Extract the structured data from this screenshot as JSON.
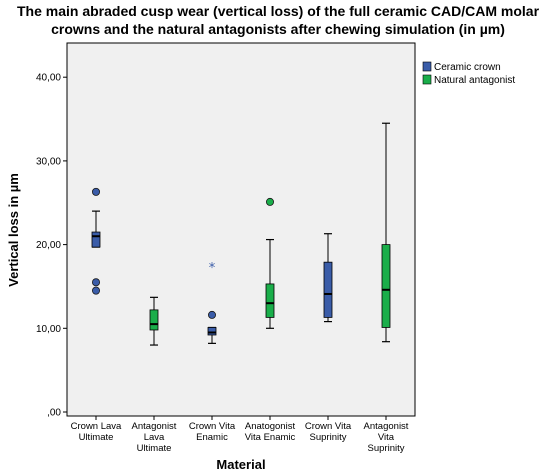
{
  "chart_data": {
    "type": "boxplot",
    "title": [
      "The main abraded cusp wear (vertical loss) of the full ceramic CAD/CAM molar",
      "crowns and the natural antagonists after chewing simulation (in µm)"
    ],
    "xlabel": "Material",
    "ylabel": "Vertical loss in µm",
    "ylim": [
      0,
      44
    ],
    "yticks": [
      0,
      10,
      20,
      30,
      40
    ],
    "ytick_labels": [
      ",00",
      "10,00",
      "20,00",
      "30,00",
      "40,00"
    ],
    "grid": false,
    "legend_position": "right",
    "series": [
      {
        "name": "Ceramic crown",
        "color": "#3a5ca8"
      },
      {
        "name": "Natural antagonist",
        "color": "#1aae4a"
      }
    ],
    "categories": [
      {
        "label": [
          "Crown Lava",
          "Ultimate"
        ],
        "series": "Ceramic crown",
        "whisker_low": 19.7,
        "q1": 19.7,
        "median": 21.0,
        "q3": 21.5,
        "whisker_high": 24.0,
        "outliers": [
          26.3,
          15.5,
          14.5
        ],
        "extremes": []
      },
      {
        "label": [
          "Antagonist",
          "Lava",
          "Ultimate"
        ],
        "series": "Natural antagonist",
        "whisker_low": 8.0,
        "q1": 9.8,
        "median": 10.5,
        "q3": 12.2,
        "whisker_high": 13.7,
        "outliers": [],
        "extremes": []
      },
      {
        "label": [
          "Crown Vita",
          "Enamic"
        ],
        "series": "Ceramic crown",
        "whisker_low": 8.2,
        "q1": 9.2,
        "median": 9.5,
        "q3": 10.1,
        "whisker_high": 10.1,
        "outliers": [
          11.6
        ],
        "extremes": [
          17.3
        ]
      },
      {
        "label": [
          "Anatogonist",
          "Vita Enamic"
        ],
        "series": "Natural antagonist",
        "whisker_low": 10.0,
        "q1": 11.3,
        "median": 13.0,
        "q3": 15.3,
        "whisker_high": 20.6,
        "outliers": [
          25.1
        ],
        "extremes": []
      },
      {
        "label": [
          "Crown Vita",
          "Suprinity"
        ],
        "series": "Ceramic crown",
        "whisker_low": 10.8,
        "q1": 11.3,
        "median": 14.1,
        "q3": 17.9,
        "whisker_high": 21.3,
        "outliers": [],
        "extremes": []
      },
      {
        "label": [
          "Antagonist",
          "Vita",
          "Suprinity"
        ],
        "series": "Natural antagonist",
        "whisker_low": 8.4,
        "q1": 10.1,
        "median": 14.6,
        "q3": 20.0,
        "whisker_high": 34.5,
        "outliers": [],
        "extremes": []
      }
    ]
  }
}
